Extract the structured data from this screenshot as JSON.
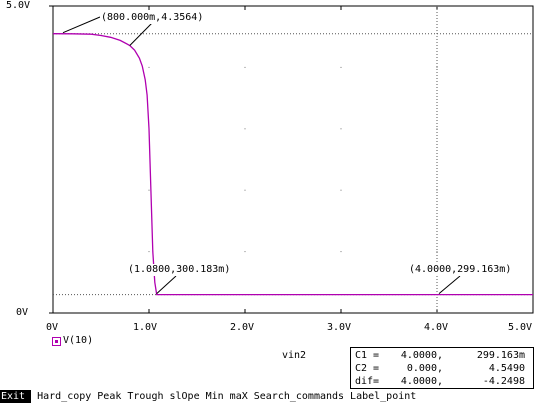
{
  "y_ticks": [
    "5.0V",
    "0V"
  ],
  "x_ticks": [
    "0V",
    "1.0V",
    "2.0V",
    "3.0V",
    "4.0V",
    "5.0V"
  ],
  "x_axis_title": "vin2",
  "legend": {
    "label": "V(10)",
    "color": "#b000b0"
  },
  "cursor_labels": [
    {
      "text": "(800.000m,4.3564)"
    },
    {
      "text": "(1.0800,300.183m)"
    },
    {
      "text": "(4.0000,299.163m)"
    }
  ],
  "readout": [
    {
      "label": "C1 =",
      "x": "4.0000,",
      "y": "299.163m"
    },
    {
      "label": "C2 =",
      "x": "0.000,",
      "y": "4.5490"
    },
    {
      "label": "dif=",
      "x": "4.0000,",
      "y": "-4.2498"
    }
  ],
  "commands": [
    "Exit",
    "Hard_copy",
    "Peak",
    "Trough",
    "slOpe",
    "Min",
    "maX",
    "Search_commands",
    "Label_point"
  ],
  "chart_data": {
    "type": "line",
    "xlabel": "vin2",
    "ylabel": "",
    "xlim": [
      0,
      5
    ],
    "ylim": [
      0,
      5
    ],
    "series": [
      {
        "name": "V(10)",
        "x": [
          0,
          0.2,
          0.4,
          0.5,
          0.6,
          0.7,
          0.8,
          0.85,
          0.9,
          0.93,
          0.96,
          0.98,
          1.0,
          1.02,
          1.04,
          1.06,
          1.08,
          1.2,
          2.0,
          3.0,
          4.0,
          5.0
        ],
        "y": [
          4.549,
          4.548,
          4.54,
          4.52,
          4.49,
          4.44,
          4.356,
          4.28,
          4.15,
          4.02,
          3.8,
          3.55,
          3.0,
          2.0,
          1.0,
          0.5,
          0.3,
          0.2995,
          0.2993,
          0.2992,
          0.2992,
          0.2991
        ]
      }
    ],
    "hlines": [
      4.549,
      0.2992
    ],
    "vlines": [
      4.0
    ],
    "cursor_points": [
      {
        "x": 0.8,
        "y": 4.3564
      },
      {
        "x": 1.08,
        "y": 0.300183
      },
      {
        "x": 4.0,
        "y": 0.299163
      }
    ]
  }
}
